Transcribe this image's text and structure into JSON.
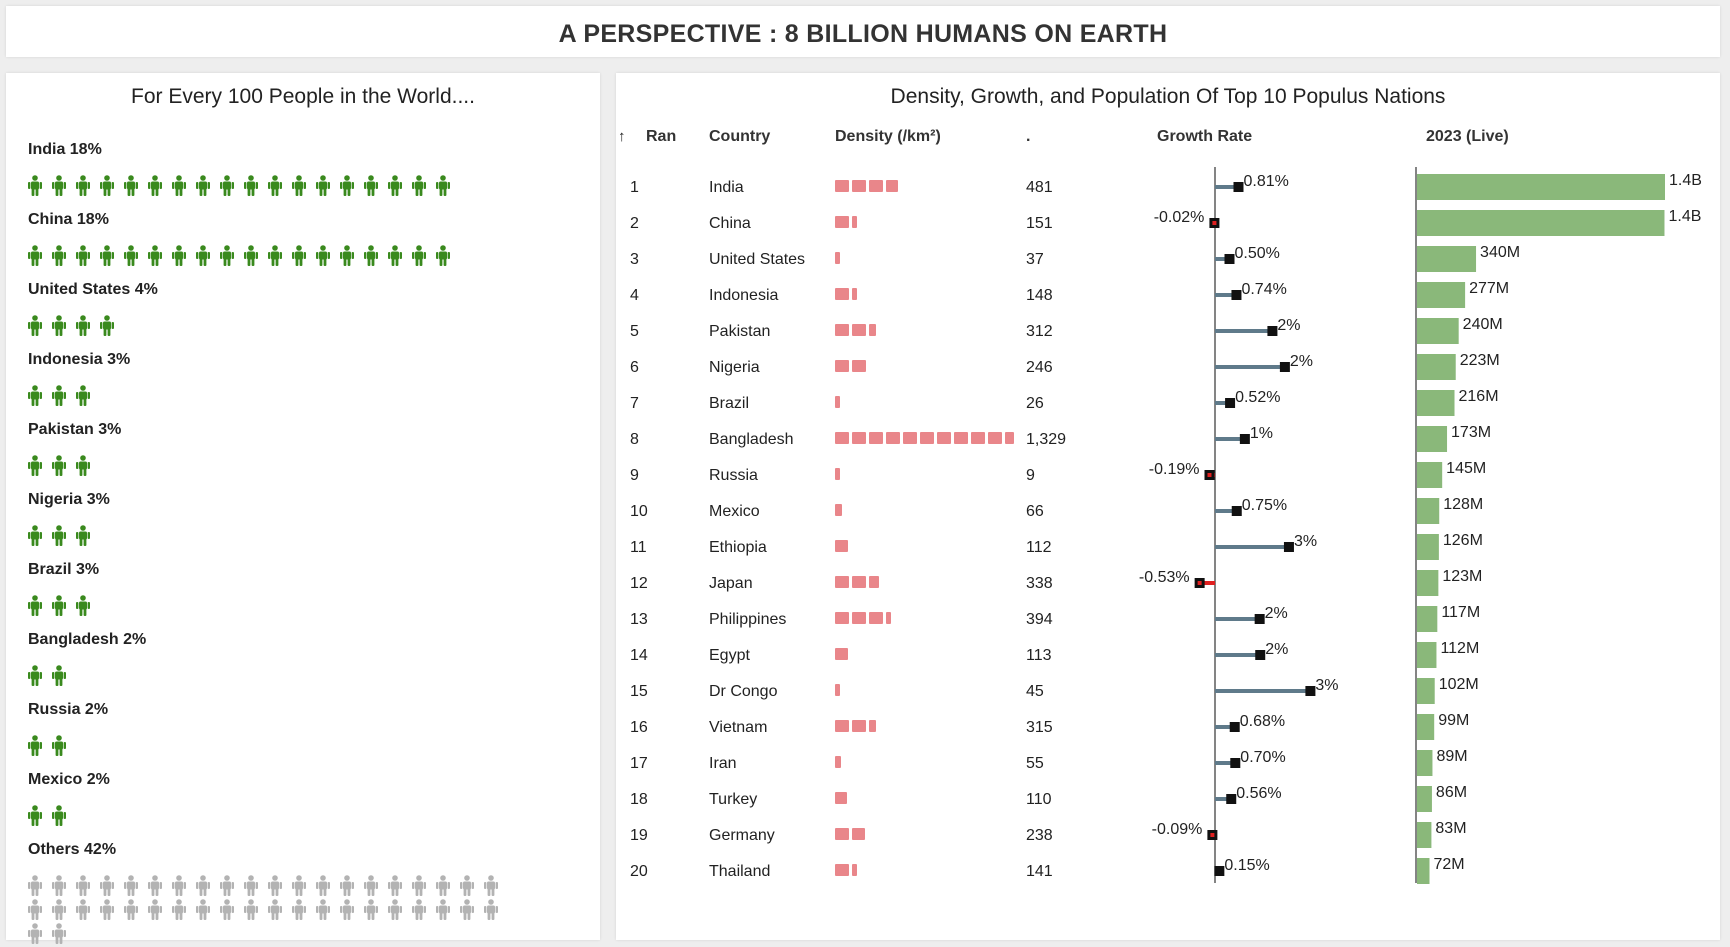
{
  "title": "A PERSPECTIVE :  8 BILLION HUMANS ON EARTH",
  "left_panel": {
    "title": "For Every 100 People in the World....",
    "groups": [
      {
        "label": "India 18%",
        "count": 18,
        "color": "#3a8a1e"
      },
      {
        "label": "China 18%",
        "count": 18,
        "color": "#3a8a1e"
      },
      {
        "label": "United States 4%",
        "count": 4,
        "color": "#3a8a1e"
      },
      {
        "label": "Indonesia 3%",
        "count": 3,
        "color": "#3a8a1e"
      },
      {
        "label": "Pakistan 3%",
        "count": 3,
        "color": "#3a8a1e"
      },
      {
        "label": "Nigeria 3%",
        "count": 3,
        "color": "#3a8a1e"
      },
      {
        "label": "Brazil 3%",
        "count": 3,
        "color": "#3a8a1e"
      },
      {
        "label": "Bangladesh 2%",
        "count": 2,
        "color": "#3a8a1e"
      },
      {
        "label": "Russia 2%",
        "count": 2,
        "color": "#3a8a1e"
      },
      {
        "label": "Mexico 2%",
        "count": 2,
        "color": "#3a8a1e"
      },
      {
        "label": "Others 42%",
        "count": 42,
        "color": "#b3b3b3"
      }
    ]
  },
  "right_panel": {
    "title": "Density, Growth, and Population Of Top 10 Populus Nations"
  },
  "chart_data": {
    "type": "table",
    "columns": {
      "sort_icon": "↑",
      "rank": "Ran",
      "country": "Country",
      "density": "Density (/km²)",
      "density_value": ".",
      "growth": "Growth Rate",
      "population": "2023 (Live)"
    },
    "density_unit_per_block": 125,
    "colors": {
      "density": "#e9868a",
      "growth_line": "#5f7a8a",
      "growth_marker": "#111111",
      "growth_negative": "#e02020",
      "population": "#8ab87a"
    },
    "rows": [
      {
        "rank": "1",
        "country": "India",
        "density": 481,
        "density_label": "481",
        "growth": 0.81,
        "growth_label": "0.81%",
        "population": 1428,
        "population_label": "1.4B"
      },
      {
        "rank": "2",
        "country": "China",
        "density": 151,
        "density_label": "151",
        "growth": -0.02,
        "growth_label": "-0.02%",
        "population": 1425,
        "population_label": "1.4B"
      },
      {
        "rank": "3",
        "country": "United States",
        "density": 37,
        "density_label": "37",
        "growth": 0.5,
        "growth_label": "0.50%",
        "population": 340,
        "population_label": "340M"
      },
      {
        "rank": "4",
        "country": "Indonesia",
        "density": 148,
        "density_label": "148",
        "growth": 0.74,
        "growth_label": "0.74%",
        "population": 277,
        "population_label": "277M"
      },
      {
        "rank": "5",
        "country": "Pakistan",
        "density": 312,
        "density_label": "312",
        "growth": 1.98,
        "growth_label": "2%",
        "population": 240,
        "population_label": "240M"
      },
      {
        "rank": "6",
        "country": "Nigeria",
        "density": 246,
        "density_label": "246",
        "growth": 2.41,
        "growth_label": "2%",
        "population": 223,
        "population_label": "223M"
      },
      {
        "rank": "7",
        "country": "Brazil",
        "density": 26,
        "density_label": "26",
        "growth": 0.52,
        "growth_label": "0.52%",
        "population": 216,
        "population_label": "216M"
      },
      {
        "rank": "8",
        "country": "Bangladesh",
        "density": 1329,
        "density_label": "1,329",
        "growth": 1.03,
        "growth_label": "1%",
        "population": 173,
        "population_label": "173M"
      },
      {
        "rank": "9",
        "country": "Russia",
        "density": 9,
        "density_label": "9",
        "growth": -0.19,
        "growth_label": "-0.19%",
        "population": 145,
        "population_label": "145M"
      },
      {
        "rank": "10",
        "country": "Mexico",
        "density": 66,
        "density_label": "66",
        "growth": 0.75,
        "growth_label": "0.75%",
        "population": 128,
        "population_label": "128M"
      },
      {
        "rank": "11",
        "country": "Ethiopia",
        "density": 112,
        "density_label": "112",
        "growth": 2.55,
        "growth_label": "3%",
        "population": 126,
        "population_label": "126M"
      },
      {
        "rank": "12",
        "country": "Japan",
        "density": 338,
        "density_label": "338",
        "growth": -0.53,
        "growth_label": "-0.53%",
        "population": 123,
        "population_label": "123M"
      },
      {
        "rank": "13",
        "country": "Philippines",
        "density": 394,
        "density_label": "394",
        "growth": 1.54,
        "growth_label": "2%",
        "population": 117,
        "population_label": "117M"
      },
      {
        "rank": "14",
        "country": "Egypt",
        "density": 113,
        "density_label": "113",
        "growth": 1.56,
        "growth_label": "2%",
        "population": 112,
        "population_label": "112M"
      },
      {
        "rank": "15",
        "country": "Dr Congo",
        "density": 45,
        "density_label": "45",
        "growth": 3.29,
        "growth_label": "3%",
        "population": 102,
        "population_label": "102M"
      },
      {
        "rank": "16",
        "country": "Vietnam",
        "density": 315,
        "density_label": "315",
        "growth": 0.68,
        "growth_label": "0.68%",
        "population": 99,
        "population_label": "99M"
      },
      {
        "rank": "17",
        "country": "Iran",
        "density": 55,
        "density_label": "55",
        "growth": 0.7,
        "growth_label": "0.70%",
        "population": 89,
        "population_label": "89M"
      },
      {
        "rank": "18",
        "country": "Turkey",
        "density": 110,
        "density_label": "110",
        "growth": 0.56,
        "growth_label": "0.56%",
        "population": 86,
        "population_label": "86M"
      },
      {
        "rank": "19",
        "country": "Germany",
        "density": 238,
        "density_label": "238",
        "growth": -0.09,
        "growth_label": "-0.09%",
        "population": 83,
        "population_label": "83M"
      },
      {
        "rank": "20",
        "country": "Thailand",
        "density": 141,
        "density_label": "141",
        "growth": 0.15,
        "growth_label": "0.15%",
        "population": 72,
        "population_label": "72M"
      }
    ]
  }
}
